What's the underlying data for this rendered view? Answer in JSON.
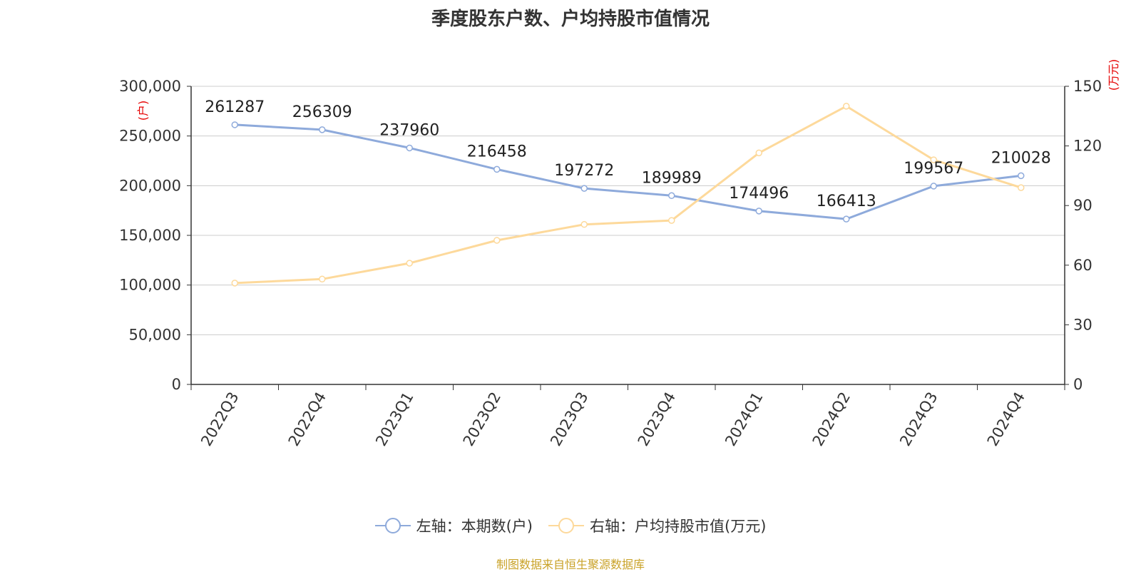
{
  "chart_data": {
    "type": "line",
    "title": "季度股东户数、户均持股市值情况",
    "categories": [
      "2022Q3",
      "2022Q4",
      "2023Q1",
      "2023Q2",
      "2023Q3",
      "2023Q4",
      "2024Q1",
      "2024Q2",
      "2024Q3",
      "2024Q4"
    ],
    "left_axis": {
      "label": "(户)",
      "range": [
        0,
        300000
      ],
      "ticks": [
        "0",
        "50,000",
        "100,000",
        "150,000",
        "200,000",
        "250,000",
        "300,000"
      ]
    },
    "right_axis": {
      "label": "(万元)",
      "range": [
        0,
        150
      ],
      "ticks": [
        "0",
        "30",
        "60",
        "90",
        "120",
        "150"
      ]
    },
    "grid": true,
    "legend_position": "bottom",
    "series": [
      {
        "name": "左轴：本期数(户)",
        "axis": "left",
        "color": "#8eaadb",
        "values": [
          261287,
          256309,
          237960,
          216458,
          197272,
          189989,
          174496,
          166413,
          199567,
          210028
        ],
        "labels": [
          "261287",
          "256309",
          "237960",
          "216458",
          "197272",
          "189989",
          "174496",
          "166413",
          "199567",
          "210028"
        ]
      },
      {
        "name": "右轴：户均持股市值(万元)",
        "axis": "right",
        "color": "#fdd99b",
        "values": [
          51,
          53,
          61,
          72.5,
          80.5,
          82.5,
          116.5,
          140,
          113,
          99
        ]
      }
    ],
    "source": "制图数据来自恒生聚源数据库"
  }
}
